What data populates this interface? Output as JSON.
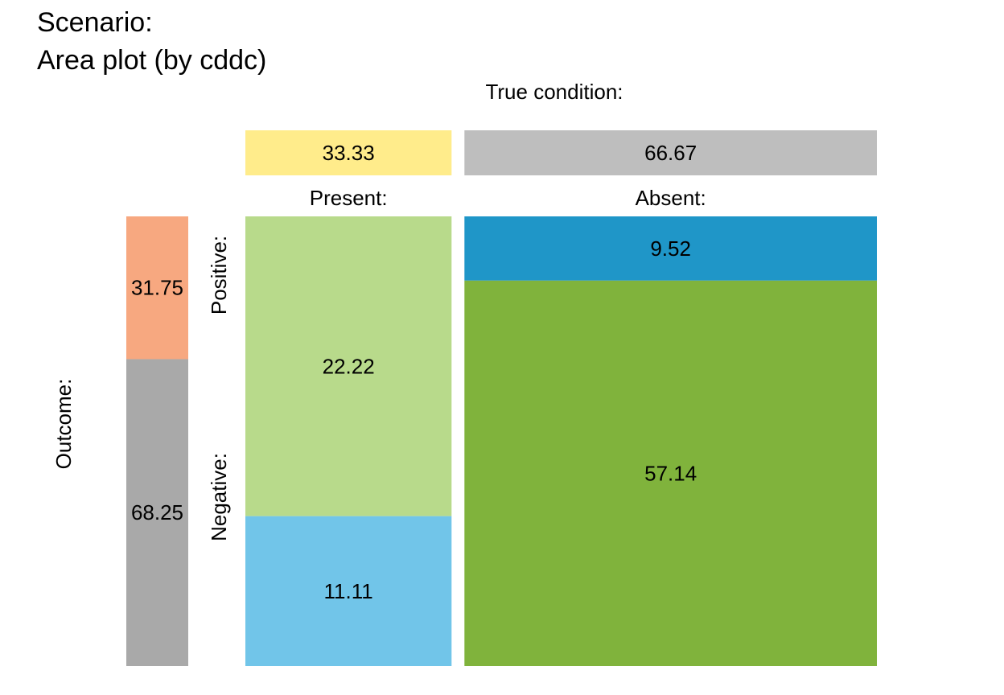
{
  "title_line1": "Scenario:",
  "title_line2": "Area plot (by cddc)",
  "chart_data": {
    "type": "area",
    "title": "Scenario: Area plot (by cddc)",
    "column_heading": "True condition:",
    "row_heading": "Outcome:",
    "columns": [
      {
        "key": "present",
        "label": "Present:",
        "value": 33.33,
        "color": "#FFEC8B"
      },
      {
        "key": "absent",
        "label": "Absent:",
        "value": 66.67,
        "color": "#BEBEBE"
      }
    ],
    "rows": [
      {
        "key": "positive",
        "label": "Positive:",
        "value": 31.75,
        "color": "#F7A880"
      },
      {
        "key": "negative",
        "label": "Negative:",
        "value": 68.25,
        "color": "#A9A9A9"
      }
    ],
    "cells": [
      {
        "key": "hi",
        "column": "present",
        "row": "positive",
        "value": 22.22,
        "color": "#B8DA8B"
      },
      {
        "key": "mi",
        "column": "present",
        "row": "negative",
        "value": 11.11,
        "color": "#71C5E9"
      },
      {
        "key": "fa",
        "column": "absent",
        "row": "positive",
        "value": 9.52,
        "color": "#1F96C8"
      },
      {
        "key": "cr",
        "column": "absent",
        "row": "negative",
        "value": 57.14,
        "color": "#80B33C"
      }
    ]
  }
}
